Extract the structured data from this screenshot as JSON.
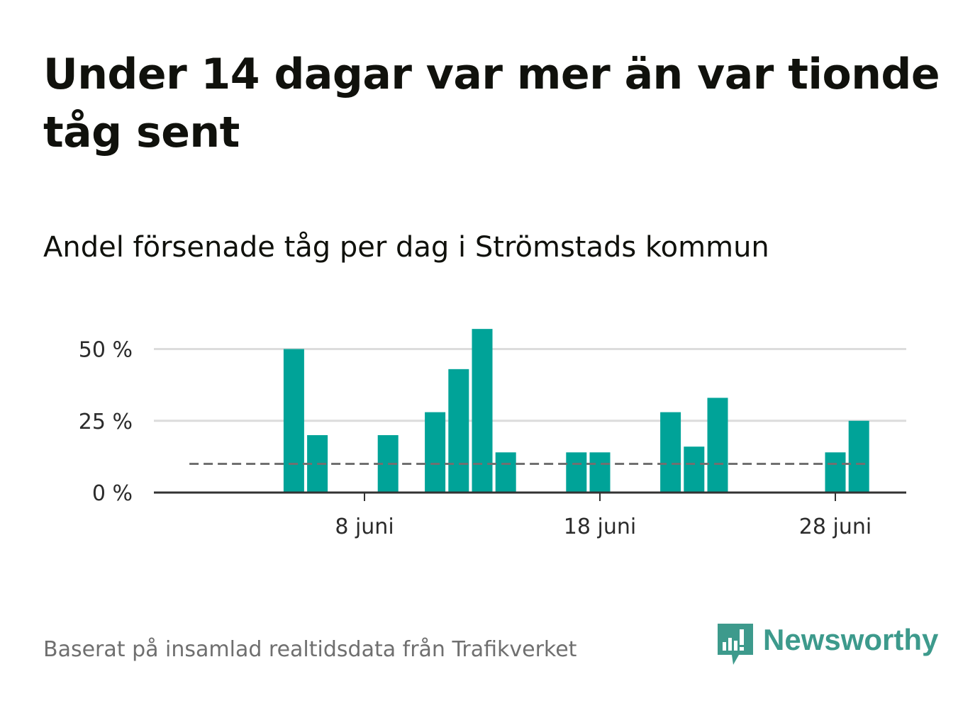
{
  "title": "Under 14 dagar var mer än var tionde tåg sent",
  "subtitle": "Andel försenade tåg per dag i Strömstads kommun",
  "source": "Baserat på insamlad realtidsdata från Trafikverket",
  "logo": {
    "text": "Newsworthy",
    "icon": "newsworthy-speech-bubble-bars-icon",
    "color": "#3d9a8c"
  },
  "colors": {
    "bar": "#00a398",
    "reference_line": "#707070",
    "grid": "#dcdcdc",
    "axis": "#333333"
  },
  "chart_data": {
    "type": "bar",
    "title": "Andel försenade tåg per dag i Strömstads kommun",
    "xlabel": "",
    "ylabel": "",
    "unit": "%",
    "ylim": [
      0,
      60
    ],
    "yticks": [
      {
        "value": 0,
        "label": "0 %"
      },
      {
        "value": 25,
        "label": "25 %"
      },
      {
        "value": 50,
        "label": "50 %"
      }
    ],
    "xticks": [
      {
        "day": 8,
        "label": "8 juni"
      },
      {
        "day": 18,
        "label": "18 juni"
      },
      {
        "day": 28,
        "label": "28 juni"
      }
    ],
    "x_domain_days": [
      0.5,
      30.5
    ],
    "grid": true,
    "reference_line": {
      "value": 10,
      "style": "dashed",
      "from_day": 1,
      "to_day": 29
    },
    "days": [
      1,
      2,
      3,
      4,
      5,
      6,
      7,
      8,
      9,
      10,
      11,
      12,
      13,
      14,
      15,
      16,
      17,
      18,
      19,
      20,
      21,
      22,
      23,
      24,
      25,
      26,
      27,
      28,
      29
    ],
    "values": [
      0,
      0,
      0,
      0,
      50,
      20,
      0,
      0,
      20,
      0,
      28,
      43,
      57,
      14,
      0,
      0,
      14,
      14,
      0,
      0,
      28,
      16,
      33,
      0,
      0,
      0,
      0,
      14,
      25
    ]
  }
}
